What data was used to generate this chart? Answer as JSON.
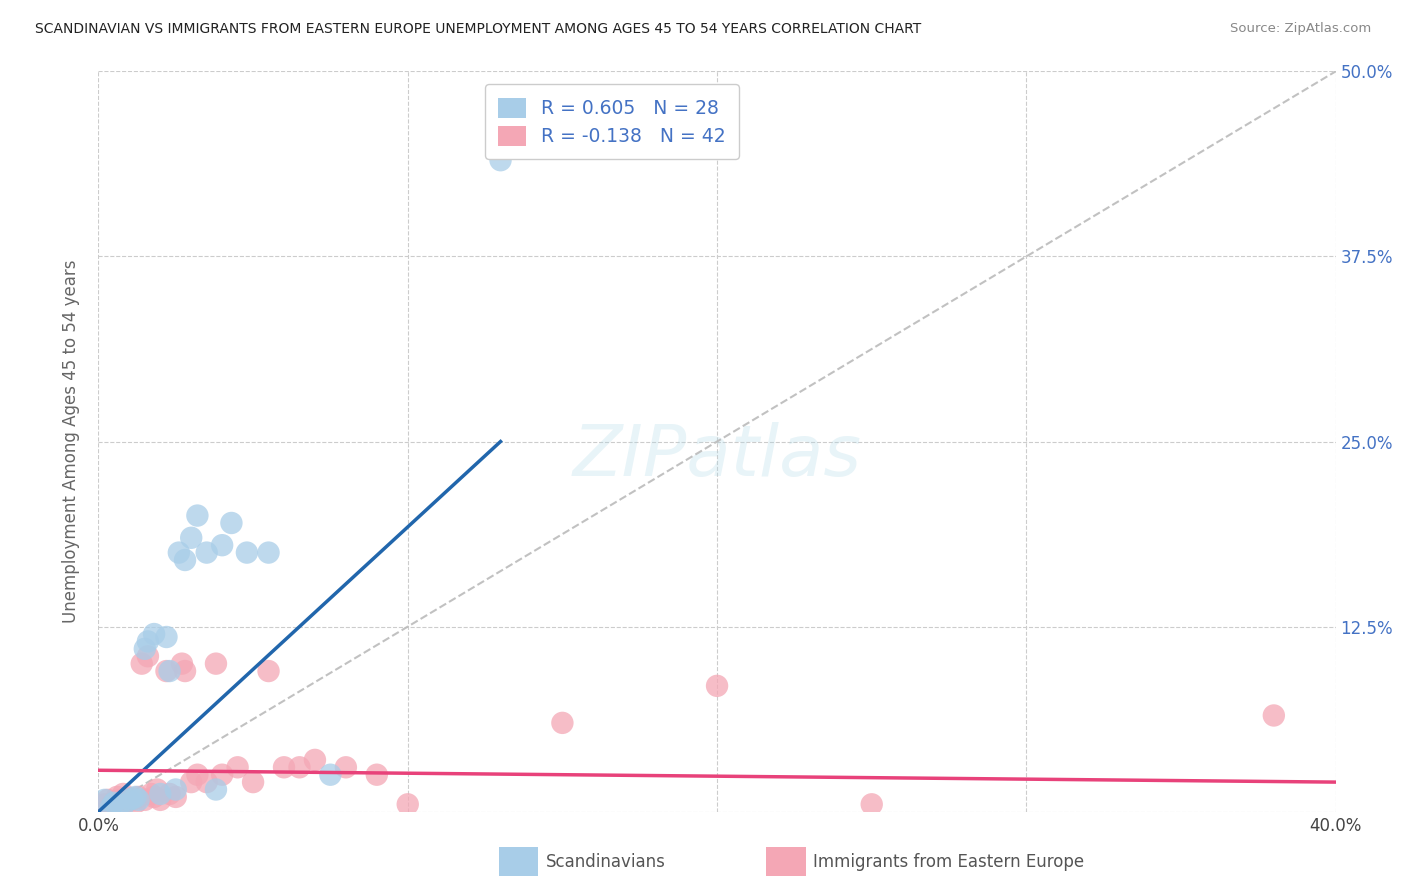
{
  "title": "SCANDINAVIAN VS IMMIGRANTS FROM EASTERN EUROPE UNEMPLOYMENT AMONG AGES 45 TO 54 YEARS CORRELATION CHART",
  "source": "Source: ZipAtlas.com",
  "ylabel": "Unemployment Among Ages 45 to 54 years",
  "xlim": [
    0.0,
    0.4
  ],
  "ylim": [
    0.0,
    0.5
  ],
  "xticks": [
    0.0,
    0.1,
    0.2,
    0.3,
    0.4
  ],
  "yticks": [
    0.0,
    0.125,
    0.25,
    0.375,
    0.5
  ],
  "xticklabels": [
    "0.0%",
    "",
    "",
    "",
    "40.0%"
  ],
  "yticklabels_right": [
    "",
    "12.5%",
    "25.0%",
    "37.5%",
    "50.0%"
  ],
  "scand_R": 0.605,
  "scand_N": 28,
  "eastern_R": -0.138,
  "eastern_N": 42,
  "scand_color": "#A8CDE8",
  "eastern_color": "#F4A7B5",
  "scand_line_color": "#2166AC",
  "eastern_line_color": "#E8427A",
  "ref_line_color": "#BBBBBB",
  "background_color": "#FFFFFF",
  "grid_color": "#CCCCCC",
  "watermark": "ZIPatlas",
  "scand_x": [
    0.002,
    0.004,
    0.005,
    0.007,
    0.008,
    0.01,
    0.011,
    0.012,
    0.013,
    0.015,
    0.016,
    0.018,
    0.02,
    0.022,
    0.023,
    0.025,
    0.026,
    0.028,
    0.03,
    0.032,
    0.035,
    0.038,
    0.04,
    0.043,
    0.048,
    0.055,
    0.075,
    0.13
  ],
  "scand_y": [
    0.008,
    0.003,
    0.006,
    0.005,
    0.004,
    0.008,
    0.009,
    0.01,
    0.008,
    0.11,
    0.115,
    0.12,
    0.012,
    0.118,
    0.095,
    0.015,
    0.175,
    0.17,
    0.185,
    0.2,
    0.175,
    0.015,
    0.18,
    0.195,
    0.175,
    0.175,
    0.025,
    0.44
  ],
  "eastern_x": [
    0.002,
    0.003,
    0.004,
    0.005,
    0.006,
    0.007,
    0.008,
    0.009,
    0.01,
    0.011,
    0.012,
    0.013,
    0.014,
    0.015,
    0.016,
    0.017,
    0.018,
    0.019,
    0.02,
    0.022,
    0.023,
    0.025,
    0.027,
    0.028,
    0.03,
    0.032,
    0.035,
    0.038,
    0.04,
    0.045,
    0.05,
    0.055,
    0.06,
    0.065,
    0.07,
    0.08,
    0.09,
    0.1,
    0.15,
    0.2,
    0.25,
    0.38
  ],
  "eastern_y": [
    0.005,
    0.008,
    0.004,
    0.006,
    0.01,
    0.008,
    0.012,
    0.007,
    0.009,
    0.008,
    0.006,
    0.01,
    0.1,
    0.008,
    0.105,
    0.012,
    0.01,
    0.015,
    0.008,
    0.095,
    0.012,
    0.01,
    0.1,
    0.095,
    0.02,
    0.025,
    0.02,
    0.1,
    0.025,
    0.03,
    0.02,
    0.095,
    0.03,
    0.03,
    0.035,
    0.03,
    0.025,
    0.005,
    0.06,
    0.085,
    0.005,
    0.065
  ],
  "scand_line_x": [
    0.0,
    0.13
  ],
  "scand_line_y": [
    0.0,
    0.25
  ],
  "eastern_line_x": [
    0.0,
    0.4
  ],
  "eastern_line_y": [
    0.028,
    0.02
  ]
}
